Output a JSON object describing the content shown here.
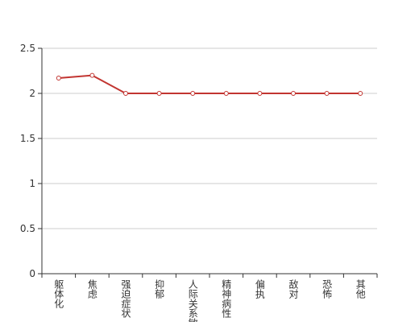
{
  "chart_data": {
    "type": "line",
    "categories": [
      "躯体化",
      "焦虑",
      "强迫症状",
      "抑郁",
      "人际关系敏感",
      "精神病性",
      "偏执",
      "敌对",
      "恐怖",
      "其他"
    ],
    "series": [
      {
        "color": "#c23531",
        "values": [
          2.17,
          2.2,
          2,
          2,
          2,
          2,
          2,
          2,
          2,
          2
        ]
      }
    ],
    "ylim": [
      0,
      2.5
    ],
    "yticks": [
      0,
      0.5,
      1,
      1.5,
      2,
      2.5
    ],
    "grid": true
  }
}
